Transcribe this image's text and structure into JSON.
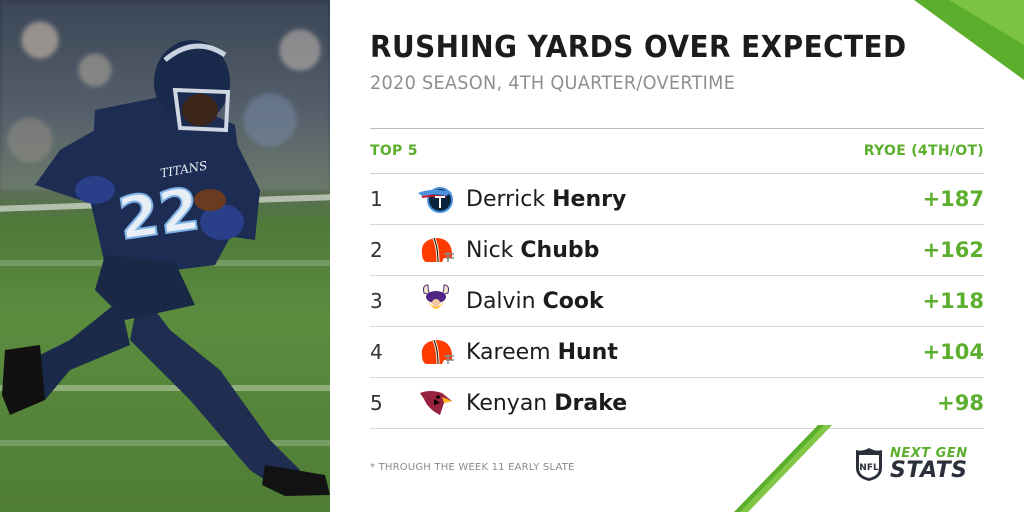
{
  "title": "RUSHING YARDS OVER EXPECTED",
  "subtitle": "2020 SEASON, 4TH QUARTER/OVERTIME",
  "table": {
    "left_header": "TOP 5",
    "right_header": "RYOE (4TH/OT)",
    "rows": [
      {
        "rank": "1",
        "first": "Derrick",
        "last": "Henry",
        "team": "Titans",
        "value": "+187"
      },
      {
        "rank": "2",
        "first": "Nick",
        "last": "Chubb",
        "team": "Browns",
        "value": "+162"
      },
      {
        "rank": "3",
        "first": "Dalvin",
        "last": "Cook",
        "team": "Vikings",
        "value": "+118"
      },
      {
        "rank": "4",
        "first": "Kareem",
        "last": "Hunt",
        "team": "Browns",
        "value": "+104"
      },
      {
        "rank": "5",
        "first": "Kenyan",
        "last": "Drake",
        "team": "Cardinals",
        "value": "+98"
      }
    ]
  },
  "footnote": "* THROUGH THE WEEK 11 EARLY SLATE",
  "branding": {
    "next": "NEXT GEN",
    "stats": "STATS",
    "shield": "NFL"
  },
  "jersey": {
    "number": "22",
    "team_word": "TITANS"
  },
  "colors": {
    "accent_green": "#5cae2d",
    "titans_navy": "#0c2340",
    "browns_orange": "#ff3c00",
    "vikings_purple": "#4f2683",
    "cardinals_red": "#97233f"
  }
}
